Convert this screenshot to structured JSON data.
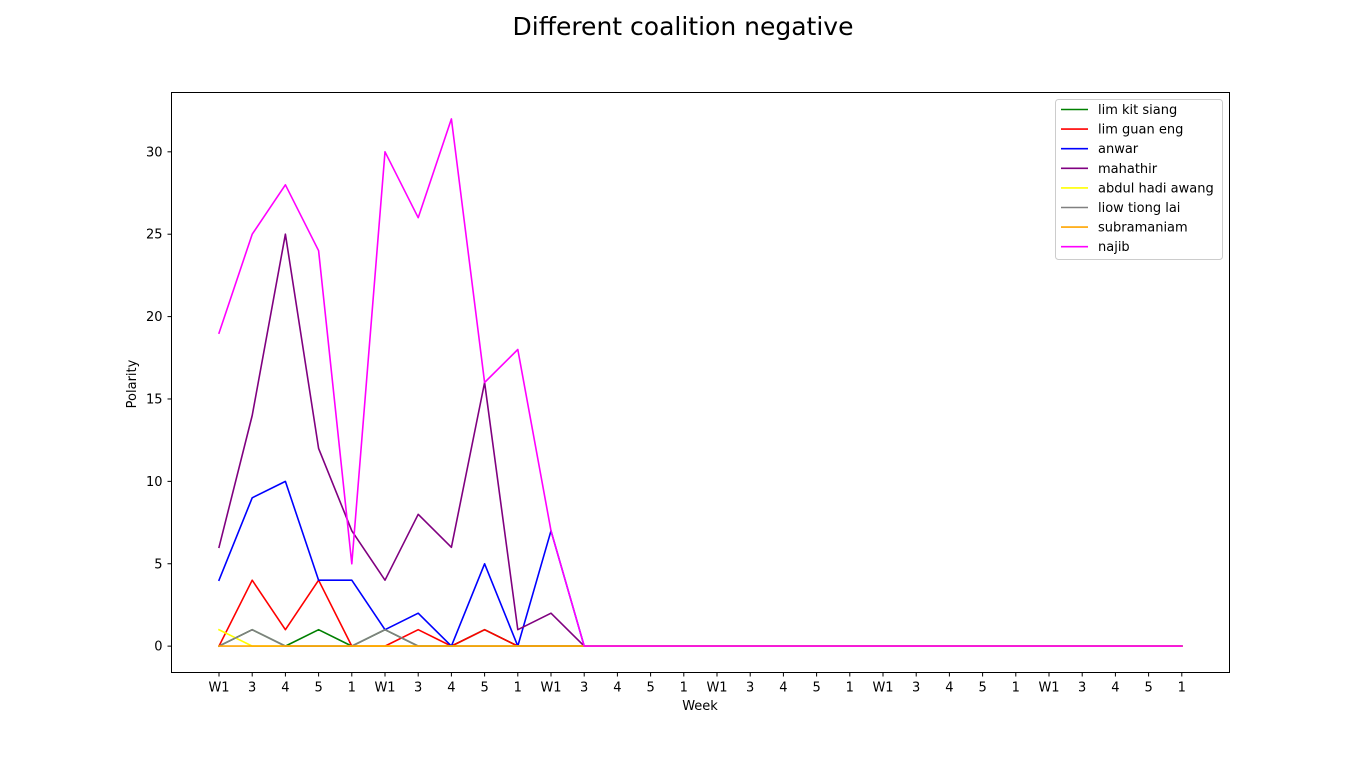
{
  "chart_data": {
    "type": "line",
    "title": "Different coalition negative",
    "xlabel": "Week",
    "ylabel": "Polarity",
    "categories": [
      "W1",
      "3",
      "4",
      "5",
      "1",
      "W1",
      "3",
      "4",
      "5",
      "1",
      "W1",
      "3",
      "4",
      "5",
      "1",
      "W1",
      "3",
      "4",
      "5",
      "1",
      "W1",
      "3",
      "4",
      "5",
      "1",
      "W1",
      "3",
      "4",
      "5",
      "1"
    ],
    "yticks": [
      0,
      5,
      10,
      15,
      20,
      25,
      30
    ],
    "ylim": [
      -1.6,
      33.6
    ],
    "grid": false,
    "legend_position": "top-right",
    "series": [
      {
        "name": "lim kit siang",
        "color": "#008000",
        "values": [
          0,
          1,
          0,
          1,
          0,
          1,
          0,
          0,
          1,
          0,
          0,
          0,
          0,
          0,
          0,
          0,
          0,
          0,
          0,
          0,
          0,
          0,
          0,
          0,
          0,
          0,
          0,
          0,
          0,
          0
        ]
      },
      {
        "name": "lim guan eng",
        "color": "#ff0000",
        "values": [
          0,
          4,
          1,
          4,
          0,
          0,
          1,
          0,
          1,
          0,
          0,
          0,
          0,
          0,
          0,
          0,
          0,
          0,
          0,
          0,
          0,
          0,
          0,
          0,
          0,
          0,
          0,
          0,
          0,
          0
        ]
      },
      {
        "name": "anwar",
        "color": "#0000ff",
        "values": [
          4,
          9,
          10,
          4,
          4,
          1,
          2,
          0,
          5,
          0,
          7,
          0,
          0,
          0,
          0,
          0,
          0,
          0,
          0,
          0,
          0,
          0,
          0,
          0,
          0,
          0,
          0,
          0,
          0,
          0
        ]
      },
      {
        "name": "mahathir",
        "color": "#800080",
        "values": [
          6,
          14,
          25,
          12,
          7,
          4,
          8,
          6,
          16,
          1,
          2,
          0,
          0,
          0,
          0,
          0,
          0,
          0,
          0,
          0,
          0,
          0,
          0,
          0,
          0,
          0,
          0,
          0,
          0,
          0
        ]
      },
      {
        "name": "abdul hadi awang",
        "color": "#ffff00",
        "values": [
          1,
          0,
          0,
          0,
          0,
          0,
          0,
          0,
          0,
          0,
          0,
          0,
          0,
          0,
          0,
          0,
          0,
          0,
          0,
          0,
          0,
          0,
          0,
          0,
          0,
          0,
          0,
          0,
          0,
          0
        ]
      },
      {
        "name": "liow tiong lai",
        "color": "#808080",
        "values": [
          0,
          1,
          0,
          0,
          0,
          1,
          0,
          0,
          0,
          0,
          0,
          0,
          0,
          0,
          0,
          0,
          0,
          0,
          0,
          0,
          0,
          0,
          0,
          0,
          0,
          0,
          0,
          0,
          0,
          0
        ]
      },
      {
        "name": "subramaniam",
        "color": "#ffa500",
        "values": [
          0,
          0,
          0,
          0,
          0,
          0,
          0,
          0,
          0,
          0,
          0,
          0,
          0,
          0,
          0,
          0,
          0,
          0,
          0,
          0,
          0,
          0,
          0,
          0,
          0,
          0,
          0,
          0,
          0,
          0
        ]
      },
      {
        "name": "najib",
        "color": "#ff00ff",
        "values": [
          19,
          25,
          28,
          24,
          5,
          30,
          26,
          32,
          16,
          18,
          7,
          0,
          0,
          0,
          0,
          0,
          0,
          0,
          0,
          0,
          0,
          0,
          0,
          0,
          0,
          0,
          0,
          0,
          0,
          0
        ]
      }
    ]
  }
}
